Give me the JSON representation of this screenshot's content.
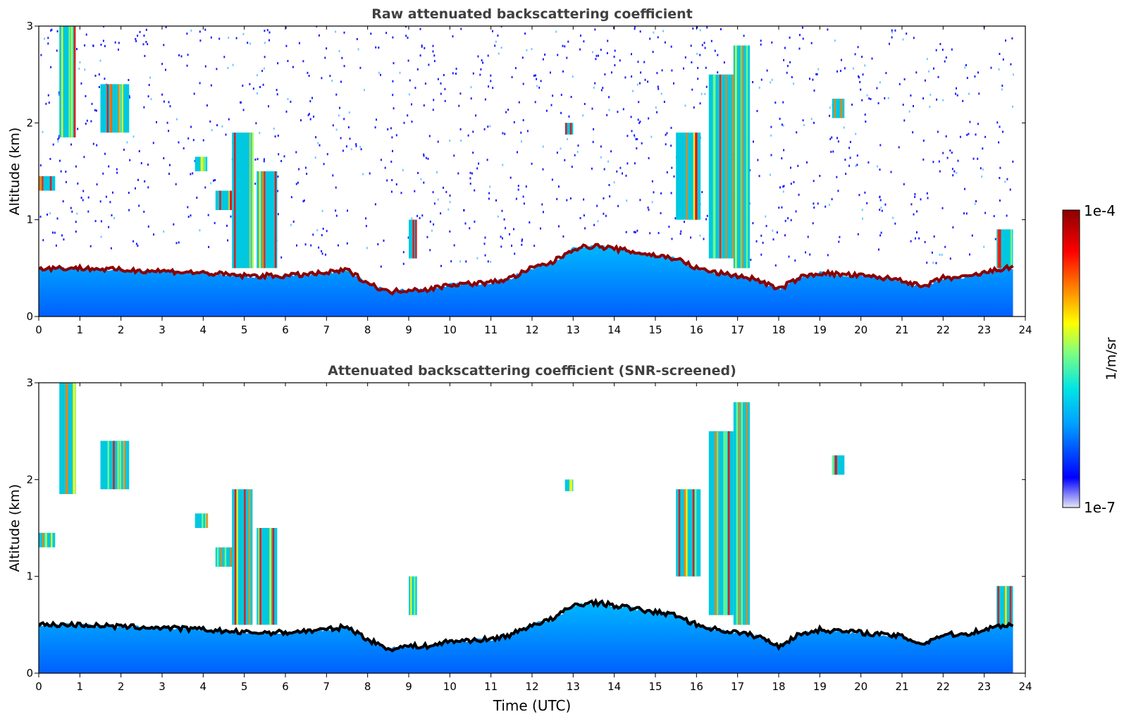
{
  "chart_data": [
    {
      "type": "heatmap",
      "title": "Raw attenuated backscattering coefficient",
      "xlabel": "",
      "ylabel": "Altitude (km)",
      "xlim": [
        0,
        24
      ],
      "ylim": [
        0,
        3
      ],
      "x_ticks": [
        "0",
        "1",
        "2",
        "3",
        "4",
        "5",
        "6",
        "7",
        "8",
        "9",
        "10",
        "11",
        "12",
        "13",
        "14",
        "15",
        "16",
        "17",
        "18",
        "19",
        "20",
        "21",
        "22",
        "23",
        "24"
      ],
      "y_ticks": [
        "0",
        "1",
        "2",
        "3"
      ],
      "data_end_hour": 23.7,
      "boundary_layer_top_km": [
        [
          0,
          0.5
        ],
        [
          1,
          0.5
        ],
        [
          2,
          0.48
        ],
        [
          3,
          0.47
        ],
        [
          4,
          0.45
        ],
        [
          5,
          0.42
        ],
        [
          6,
          0.42
        ],
        [
          7,
          0.45
        ],
        [
          7.5,
          0.48
        ],
        [
          8,
          0.35
        ],
        [
          8.5,
          0.25
        ],
        [
          9,
          0.28
        ],
        [
          9.5,
          0.28
        ],
        [
          10,
          0.33
        ],
        [
          11,
          0.35
        ],
        [
          11.5,
          0.4
        ],
        [
          12,
          0.5
        ],
        [
          12.5,
          0.56
        ],
        [
          13,
          0.7
        ],
        [
          13.5,
          0.73
        ],
        [
          14,
          0.7
        ],
        [
          15,
          0.63
        ],
        [
          15.5,
          0.6
        ],
        [
          16,
          0.5
        ],
        [
          16.5,
          0.45
        ],
        [
          17,
          0.42
        ],
        [
          17.5,
          0.38
        ],
        [
          18,
          0.28
        ],
        [
          18.5,
          0.4
        ],
        [
          19,
          0.45
        ],
        [
          20,
          0.42
        ],
        [
          21,
          0.38
        ],
        [
          21.5,
          0.3
        ],
        [
          22,
          0.4
        ],
        [
          22.5,
          0.4
        ],
        [
          23,
          0.45
        ],
        [
          23.5,
          0.5
        ]
      ],
      "clouds": [
        {
          "t0": 0.5,
          "t1": 0.9,
          "base_km": 1.85,
          "top_km": 3.0
        },
        {
          "t0": 1.5,
          "t1": 2.2,
          "base_km": 1.9,
          "top_km": 2.4
        },
        {
          "t0": 0,
          "t1": 0.4,
          "base_km": 1.3,
          "top_km": 1.45
        },
        {
          "t0": 3.8,
          "t1": 4.1,
          "base_km": 1.5,
          "top_km": 1.65
        },
        {
          "t0": 4.3,
          "t1": 4.9,
          "base_km": 1.1,
          "top_km": 1.3
        },
        {
          "t0": 4.7,
          "t1": 5.2,
          "base_km": 0.5,
          "top_km": 1.9
        },
        {
          "t0": 5.3,
          "t1": 5.8,
          "base_km": 0.5,
          "top_km": 1.5
        },
        {
          "t0": 9,
          "t1": 9.2,
          "base_km": 0.6,
          "top_km": 1.0
        },
        {
          "t0": 12.8,
          "t1": 13,
          "base_km": 1.88,
          "top_km": 2.0
        },
        {
          "t0": 15.5,
          "t1": 16.1,
          "base_km": 1.0,
          "top_km": 1.9
        },
        {
          "t0": 16.3,
          "t1": 16.9,
          "base_km": 0.6,
          "top_km": 2.5
        },
        {
          "t0": 16.9,
          "t1": 17.3,
          "base_km": 0.5,
          "top_km": 2.8
        },
        {
          "t0": 19.3,
          "t1": 19.6,
          "base_km": 2.05,
          "top_km": 2.25
        },
        {
          "t0": 23.3,
          "t1": 23.7,
          "base_km": 0.5,
          "top_km": 0.9
        }
      ]
    },
    {
      "type": "heatmap",
      "title": "Attenuated backscattering coefficient (SNR-screened)",
      "xlabel": "Time (UTC)",
      "ylabel": "Altitude (km)",
      "xlim": [
        0,
        24
      ],
      "ylim": [
        0,
        3
      ],
      "x_ticks": [
        "0",
        "1",
        "2",
        "3",
        "4",
        "5",
        "6",
        "7",
        "8",
        "9",
        "10",
        "11",
        "12",
        "13",
        "14",
        "15",
        "16",
        "17",
        "18",
        "19",
        "20",
        "21",
        "22",
        "23",
        "24"
      ],
      "y_ticks": [
        "0",
        "1",
        "2",
        "3"
      ],
      "data_end_hour": 23.7
    }
  ],
  "colorbar": {
    "label": "1/m/sr",
    "max_label": "1e-4",
    "min_label": "1e-7",
    "colors": [
      "#e6e6f5",
      "#0000ff",
      "#00a0ff",
      "#00e5e5",
      "#7fff7f",
      "#ffff00",
      "#ff8000",
      "#ff0000",
      "#8b0000"
    ]
  }
}
